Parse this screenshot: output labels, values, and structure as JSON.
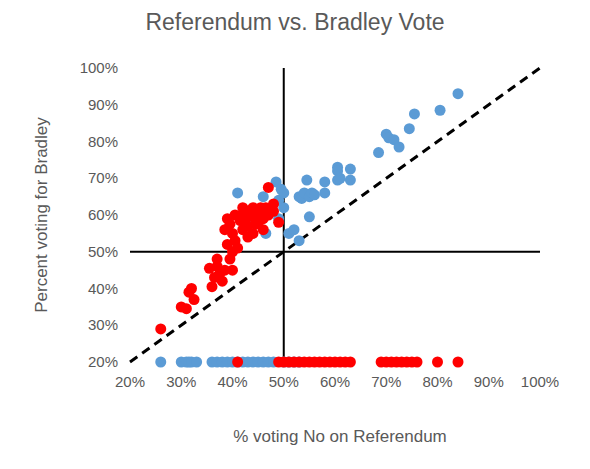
{
  "chart_data": {
    "type": "scatter",
    "title": "Referendum vs. Bradley Vote",
    "x_label": "% voting No on Referendum",
    "y_label": "Percent voting for Bradley",
    "xlim": [
      20,
      100
    ],
    "ylim": [
      20,
      100
    ],
    "xticks": [
      {
        "value": 20,
        "label": "20%"
      },
      {
        "value": 30,
        "label": "30%"
      },
      {
        "value": 40,
        "label": "40%"
      },
      {
        "value": 50,
        "label": "50%"
      },
      {
        "value": 60,
        "label": "60%"
      },
      {
        "value": 70,
        "label": "70%"
      },
      {
        "value": 80,
        "label": "80%"
      },
      {
        "value": 90,
        "label": "90%"
      },
      {
        "value": 100,
        "label": "100%"
      }
    ],
    "yticks": [
      {
        "value": 20,
        "label": "20%"
      },
      {
        "value": 30,
        "label": "30%"
      },
      {
        "value": 40,
        "label": "40%"
      },
      {
        "value": 50,
        "label": "50%"
      },
      {
        "value": 60,
        "label": "60%"
      },
      {
        "value": 70,
        "label": "70%"
      },
      {
        "value": 80,
        "label": "80%"
      },
      {
        "value": 90,
        "label": "90%"
      },
      {
        "value": 100,
        "label": "100%"
      }
    ],
    "grid": false,
    "series": [
      {
        "type": "line",
        "line_style": "solid",
        "color": "#000000",
        "x": [
          50,
          50
        ],
        "values": [
          20,
          100
        ]
      },
      {
        "type": "line",
        "line_style": "solid",
        "color": "#000000",
        "x": [
          20,
          100
        ],
        "values": [
          50,
          50
        ]
      },
      {
        "type": "line",
        "line_style": "dashed",
        "color": "#000000",
        "x": [
          20,
          100
        ],
        "values": [
          20,
          100
        ]
      },
      {
        "type": "scatter",
        "marker": "circle",
        "color": "#5b9bd5",
        "x": [
          26,
          30,
          31,
          31.5,
          32,
          33,
          36,
          37,
          38,
          39,
          40,
          41,
          42,
          43,
          44,
          45,
          46,
          47,
          48,
          50,
          51,
          52,
          53
        ],
        "values": [
          20,
          20,
          20,
          20,
          20,
          20,
          20,
          20,
          20,
          20,
          20,
          20,
          20,
          20,
          20,
          20,
          20,
          20,
          20,
          20,
          20,
          20,
          20
        ]
      },
      {
        "type": "scatter",
        "marker": "circle",
        "color": "#ff0000",
        "x": [
          41,
          49,
          50,
          51,
          52,
          53,
          54,
          55,
          56,
          57,
          58,
          59,
          60,
          61,
          62,
          63,
          69,
          70,
          71,
          72,
          73,
          74,
          75,
          76,
          80,
          84
        ],
        "values": [
          20,
          20,
          20,
          20,
          20,
          20,
          20,
          20,
          20,
          20,
          20,
          20,
          20,
          20,
          20,
          20,
          20,
          20,
          20,
          20,
          20,
          20,
          20,
          20,
          20,
          20
        ]
      },
      {
        "type": "scatter",
        "marker": "circle",
        "color": "#5b9bd5",
        "x": [
          41,
          48.5,
          49,
          49,
          49.5,
          50,
          50,
          51,
          52,
          53,
          53,
          53.5,
          54,
          54.5,
          55,
          55,
          55.5,
          56,
          58,
          58,
          60.5,
          60.5,
          60.5,
          61,
          63,
          63,
          68.5,
          70,
          70.5,
          71.5,
          72.5,
          74.5,
          75.5,
          80.5,
          84,
          46,
          47,
          44,
          46.5
        ],
        "values": [
          66,
          69,
          64,
          59,
          67,
          66,
          62,
          55,
          56,
          53,
          65,
          64.5,
          66,
          69.5,
          59.5,
          65,
          66,
          65.5,
          66,
          69,
          73,
          72,
          69.5,
          70,
          72.5,
          69.5,
          77,
          82,
          81,
          80.5,
          78.5,
          83.5,
          87.5,
          88.5,
          93,
          65,
          61,
          58,
          55
        ]
      },
      {
        "type": "scatter",
        "marker": "circle",
        "color": "#ff0000",
        "x": [
          26,
          30,
          31,
          31.5,
          32,
          32.5,
          35.5,
          36,
          36.5,
          37,
          37,
          37.5,
          38,
          38.5,
          38.5,
          39,
          39,
          39.5,
          39.5,
          40,
          40,
          40,
          40.5,
          40.5,
          41,
          41.5,
          42,
          42,
          42,
          42.5,
          43,
          43,
          43.5,
          44,
          44,
          44.5,
          45,
          45,
          45.5,
          46,
          46,
          46.5,
          46.5,
          47,
          47,
          48,
          48,
          49,
          44,
          43
        ],
        "values": [
          29,
          35,
          34.5,
          39,
          40,
          37,
          45.5,
          40.5,
          43,
          48,
          46,
          44,
          42,
          45,
          56,
          59,
          52,
          48,
          57.5,
          50,
          55,
          45,
          60,
          53,
          51,
          58.5,
          56,
          60,
          62,
          59,
          57,
          61,
          60,
          62,
          55,
          57.5,
          60.5,
          58,
          62,
          56,
          59,
          62,
          61,
          67.5,
          60,
          61,
          63,
          58,
          59.5,
          54
        ]
      }
    ]
  }
}
